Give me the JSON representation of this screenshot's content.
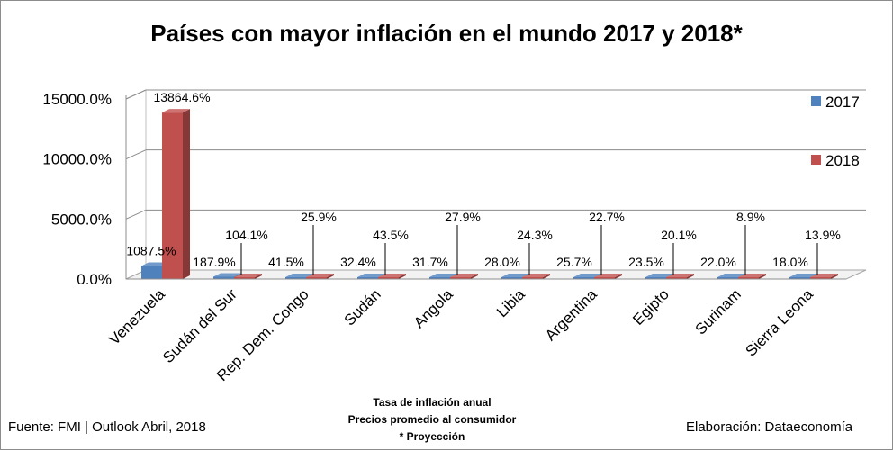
{
  "title": "Países con mayor inflación en el mundo 2017 y 2018*",
  "notes": [
    "Tasa de inflación anual",
    "Precios promedio al consumidor",
    "* Proyección"
  ],
  "source": "Fuente: FMI | Outlook Abril, 2018",
  "credit": "Elaboración: Dataeconomía",
  "colors": {
    "s2017": "#4f81bd",
    "s2018": "#c0504d"
  },
  "chart_data": {
    "type": "bar",
    "categories": [
      "Venezuela",
      "Sudán del Sur",
      "Rep. Dem. Congo",
      "Sudán",
      "Angola",
      "Libia",
      "Argentina",
      "Egipto",
      "Surinam",
      "Sierra Leona"
    ],
    "series": [
      {
        "name": "2017",
        "values": [
          1087.5,
          187.9,
          41.5,
          32.4,
          31.7,
          28.0,
          25.7,
          23.5,
          22.0,
          18.0
        ],
        "labels": [
          "1087.5%",
          "187.9%",
          "41.5%",
          "32.4%",
          "31.7%",
          "28.0%",
          "25.7%",
          "23.5%",
          "22.0%",
          "18.0%"
        ]
      },
      {
        "name": "2018",
        "values": [
          13864.6,
          104.1,
          25.9,
          43.5,
          27.9,
          24.3,
          22.7,
          20.1,
          8.9,
          13.9
        ],
        "labels": [
          "13864.6%",
          "104.1%",
          "25.9%",
          "43.5%",
          "27.9%",
          "24.3%",
          "22.7%",
          "20.1%",
          "8.9%",
          "13.9%"
        ]
      }
    ],
    "yticks": [
      "0.0%",
      "5000.0%",
      "10000.0%",
      "15000.0%"
    ],
    "ylim": [
      0,
      15000
    ],
    "grid": true,
    "legend": "right"
  }
}
